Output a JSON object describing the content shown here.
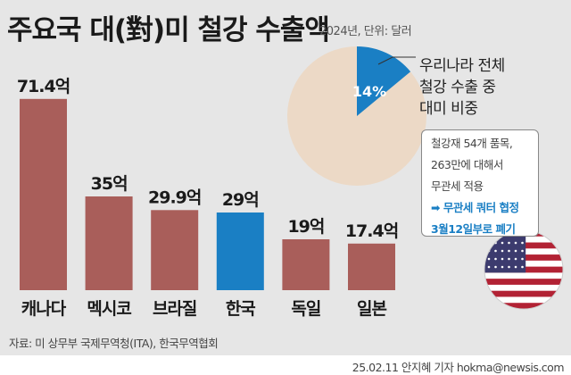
{
  "title": "주요국 대(對)미 철강 수출액",
  "subtitle": "2024년, 단위: 달러",
  "chart_data": [
    {
      "type": "bar",
      "categories": [
        "캐나다",
        "멕시코",
        "브라질",
        "한국",
        "독일",
        "일본"
      ],
      "values": [
        71.4,
        35,
        29.9,
        29,
        19,
        17.4
      ],
      "value_labels": [
        "71.4억",
        "35억",
        "29.9억",
        "29억",
        "19억",
        "17.4억"
      ],
      "unit": "억 달러",
      "colors": {
        "default": "#a95e5a",
        "highlight": "#1a7fc4"
      },
      "highlight": "한국",
      "ylim": [
        0,
        75
      ],
      "grid": false
    },
    {
      "type": "pie",
      "values": [
        14,
        86
      ],
      "value_label": "14%",
      "colors": [
        "#1a7fc4",
        "#ecd9c6"
      ],
      "label_lines": [
        "우리나라 전체",
        "철강 수출 중",
        "대미 비중"
      ]
    }
  ],
  "note": {
    "lines": [
      "철강재 54개 품목,",
      "263만에 대해서",
      "무관세 적용"
    ],
    "highlight_lines": [
      "➡ 무관세 쿼터 협정",
      "3월12일부로 폐기"
    ]
  },
  "source": "자료: 미 상무부 국제무역청(ITA), 한국무역협회",
  "credit": "25.02.11 안지혜 기자 hokma@newsis.com",
  "icons": [
    "us-flag-icon"
  ]
}
